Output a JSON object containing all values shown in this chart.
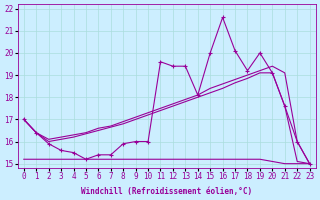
{
  "xlabel": "Windchill (Refroidissement éolien,°C)",
  "background_color": "#cceeff",
  "grid_color": "#aadddd",
  "line_color": "#990099",
  "xlim": [
    -0.5,
    23.5
  ],
  "ylim": [
    14.8,
    22.2
  ],
  "yticks": [
    15,
    16,
    17,
    18,
    19,
    20,
    21,
    22
  ],
  "xticks": [
    0,
    1,
    2,
    3,
    4,
    5,
    6,
    7,
    8,
    9,
    10,
    11,
    12,
    13,
    14,
    15,
    16,
    17,
    18,
    19,
    20,
    21,
    22,
    23
  ],
  "series1_x": [
    0,
    1,
    2,
    3,
    4,
    5,
    6,
    7,
    8,
    9,
    10,
    11,
    12,
    13,
    14,
    15,
    16,
    17,
    18,
    19,
    20,
    21,
    22,
    23
  ],
  "series1_y": [
    17.0,
    16.4,
    15.9,
    15.6,
    15.5,
    15.2,
    15.4,
    15.4,
    15.9,
    16.0,
    16.0,
    19.6,
    19.4,
    19.4,
    18.1,
    20.0,
    21.6,
    20.1,
    19.2,
    20.0,
    19.1,
    17.6,
    16.0,
    15.0
  ],
  "series2_x": [
    0,
    1,
    2,
    3,
    4,
    5,
    6,
    7,
    8,
    9,
    10,
    11,
    12,
    13,
    14,
    15,
    16,
    17,
    18,
    19,
    20,
    21,
    22,
    23
  ],
  "series2_y": [
    17.0,
    16.4,
    16.1,
    16.2,
    16.3,
    16.4,
    16.6,
    16.7,
    16.9,
    17.1,
    17.3,
    17.5,
    17.7,
    17.9,
    18.1,
    18.4,
    18.6,
    18.8,
    19.0,
    19.2,
    19.4,
    19.1,
    16.0,
    15.0
  ],
  "series3_x": [
    0,
    1,
    2,
    3,
    4,
    5,
    6,
    7,
    8,
    9,
    10,
    11,
    12,
    13,
    14,
    15,
    16,
    17,
    18,
    19,
    20,
    21,
    22,
    23
  ],
  "series3_y": [
    17.0,
    16.4,
    16.0,
    16.1,
    16.2,
    16.35,
    16.5,
    16.65,
    16.8,
    17.0,
    17.2,
    17.4,
    17.6,
    17.8,
    18.0,
    18.2,
    18.4,
    18.65,
    18.85,
    19.1,
    19.1,
    17.6,
    15.1,
    15.0
  ],
  "series4_x": [
    0,
    1,
    2,
    3,
    4,
    5,
    6,
    7,
    8,
    9,
    10,
    11,
    12,
    13,
    14,
    15,
    16,
    17,
    18,
    19,
    20,
    21,
    22,
    23
  ],
  "series4_y": [
    15.2,
    15.2,
    15.2,
    15.2,
    15.2,
    15.2,
    15.2,
    15.2,
    15.2,
    15.2,
    15.2,
    15.2,
    15.2,
    15.2,
    15.2,
    15.2,
    15.2,
    15.2,
    15.2,
    15.2,
    15.1,
    15.0,
    15.0,
    15.0
  ]
}
